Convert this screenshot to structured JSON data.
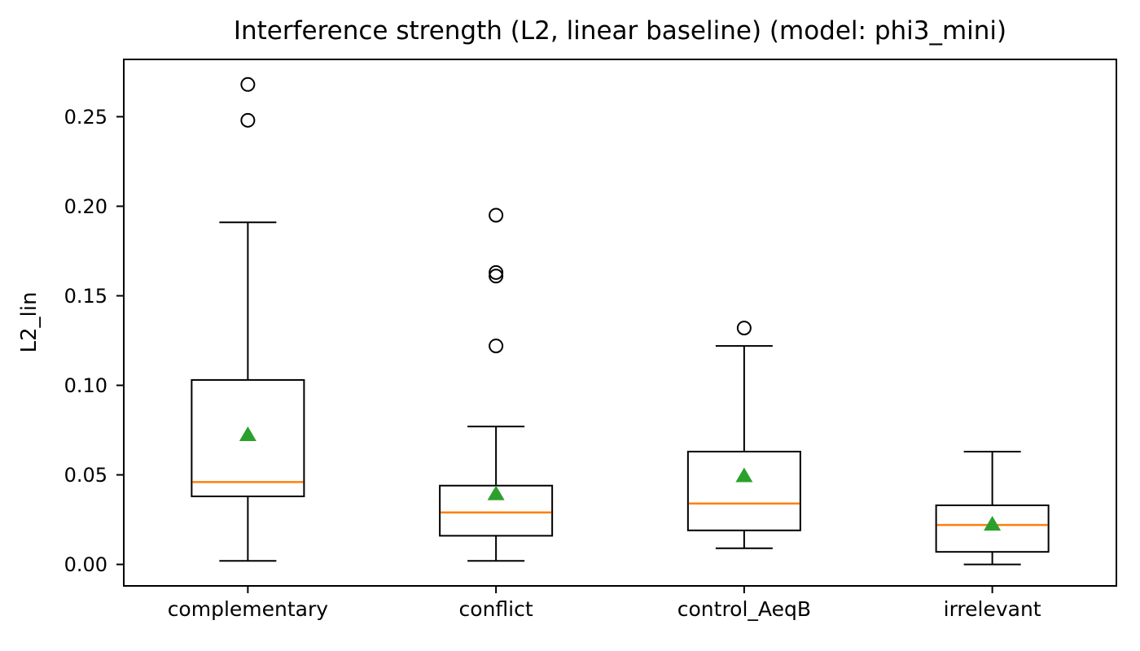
{
  "chart_data": {
    "type": "box",
    "title": "Interference strength (L2, linear baseline) (model: phi3_mini)",
    "xlabel": "",
    "ylabel": "L2_lin",
    "categories": [
      "complementary",
      "conflict",
      "control_AeqB",
      "irrelevant"
    ],
    "ylim": [
      -0.012,
      0.282
    ],
    "yticks": [
      0.0,
      0.05,
      0.1,
      0.15,
      0.2,
      0.25
    ],
    "ytick_labels": [
      "0.00",
      "0.05",
      "0.10",
      "0.15",
      "0.20",
      "0.25"
    ],
    "grid": false,
    "legend": false,
    "boxes": [
      {
        "category": "complementary",
        "whislo": 0.002,
        "q1": 0.038,
        "median": 0.046,
        "q3": 0.103,
        "whishi": 0.191,
        "mean": 0.073,
        "outliers": [
          0.248,
          0.268
        ]
      },
      {
        "category": "conflict",
        "whislo": 0.002,
        "q1": 0.016,
        "median": 0.029,
        "q3": 0.044,
        "whishi": 0.077,
        "mean": 0.04,
        "outliers": [
          0.122,
          0.161,
          0.163,
          0.195
        ]
      },
      {
        "category": "control_AeqB",
        "whislo": 0.009,
        "q1": 0.019,
        "median": 0.034,
        "q3": 0.063,
        "whishi": 0.122,
        "mean": 0.05,
        "outliers": [
          0.132
        ]
      },
      {
        "category": "irrelevant",
        "whislo": 0.0,
        "q1": 0.007,
        "median": 0.022,
        "q3": 0.033,
        "whishi": 0.063,
        "mean": 0.023,
        "outliers": []
      }
    ],
    "colors": {
      "median": "#ff7f0e",
      "mean": "#2ca02c",
      "box_stroke": "#000000",
      "background": "#ffffff"
    }
  }
}
